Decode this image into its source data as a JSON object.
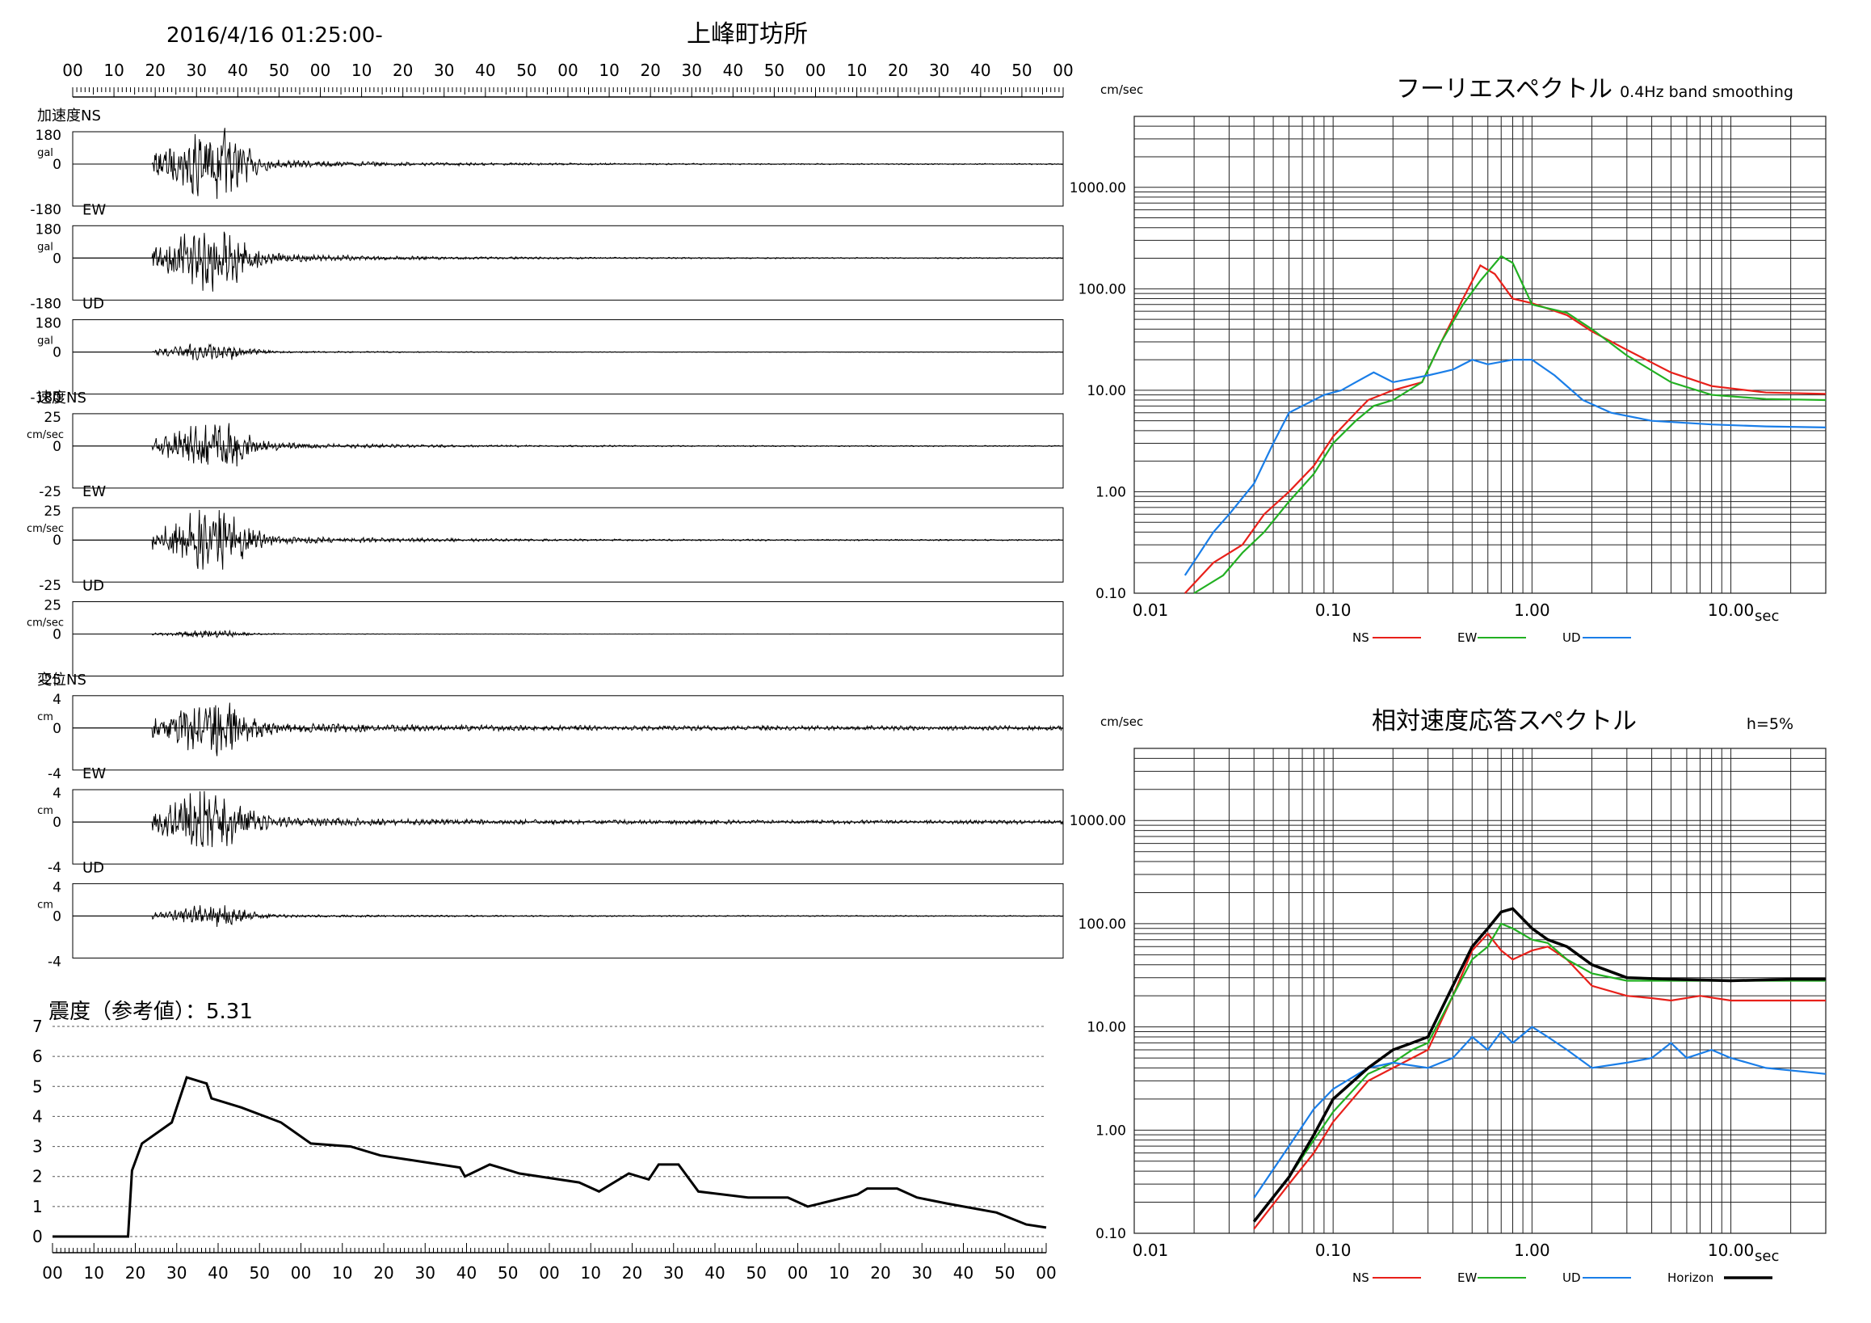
{
  "header": {
    "datetime": "2016/4/16 01:25:00-",
    "station": "上峰町坊所",
    "time_ticks": [
      "00",
      "10",
      "20",
      "30",
      "40",
      "50",
      "00",
      "10",
      "20",
      "30",
      "40",
      "50",
      "00",
      "10",
      "20",
      "30",
      "40",
      "50",
      "00",
      "10",
      "20",
      "30",
      "40",
      "50",
      "00"
    ]
  },
  "waveforms": [
    {
      "group": "加速度",
      "comp": "NS",
      "unit": "gal",
      "ymax": "180",
      "ymin": "-180",
      "amp": 1.0,
      "decay": 0.0,
      "tail": 0.015,
      "onset": 0.08
    },
    {
      "group": "",
      "comp": "EW",
      "unit": "gal",
      "ymax": "180",
      "ymin": "-180",
      "amp": 1.0,
      "decay": 0.0,
      "tail": 0.015,
      "onset": 0.08
    },
    {
      "group": "",
      "comp": "UD",
      "unit": "gal",
      "ymax": "180",
      "ymin": "-180",
      "amp": 0.25,
      "decay": 0.0,
      "tail": 0.02,
      "onset": 0.08
    },
    {
      "group": "速度",
      "comp": "NS",
      "unit": "cm/sec",
      "ymax": "25",
      "ymin": "-25",
      "amp": 0.75,
      "decay": 0.0,
      "tail": 0.02,
      "onset": 0.08
    },
    {
      "group": "",
      "comp": "EW",
      "unit": "cm/sec",
      "ymax": "25",
      "ymin": "-25",
      "amp": 0.95,
      "decay": 0.0,
      "tail": 0.02,
      "onset": 0.08
    },
    {
      "group": "",
      "comp": "UD",
      "unit": "cm/sec",
      "ymax": "25",
      "ymin": "-25",
      "amp": 0.1,
      "decay": 0.0,
      "tail": 0.01,
      "onset": 0.08
    },
    {
      "group": "変位",
      "comp": "NS",
      "unit": "cm",
      "ymax": "4",
      "ymin": "-4",
      "amp": 0.8,
      "decay": 0.0,
      "tail": 0.08,
      "onset": 0.08
    },
    {
      "group": "",
      "comp": "EW",
      "unit": "cm",
      "ymax": "4",
      "ymin": "-4",
      "amp": 0.9,
      "decay": 0.0,
      "tail": 0.06,
      "onset": 0.08
    },
    {
      "group": "",
      "comp": "UD",
      "unit": "cm",
      "ymax": "4",
      "ymin": "-4",
      "amp": 0.3,
      "decay": 0.0,
      "tail": 0.05,
      "onset": 0.08
    }
  ],
  "intensity": {
    "title": "震度（参考値）：5.31",
    "y_ticks": [
      "0",
      "1",
      "2",
      "3",
      "4",
      "5",
      "6",
      "7"
    ],
    "x_ticks": [
      "00",
      "10",
      "20",
      "30",
      "40",
      "50",
      "00",
      "10",
      "20",
      "30",
      "40",
      "50",
      "00",
      "10",
      "20",
      "30",
      "40",
      "50",
      "00",
      "10",
      "20",
      "30",
      "40",
      "50",
      "00"
    ]
  },
  "chart_data": [
    {
      "type": "line",
      "title": "フーリエスペクトル",
      "subtitle": "0.4Hz band smoothing",
      "ylabel": "cm/sec",
      "xlabel": "sec",
      "xscale": "log",
      "yscale": "log",
      "xlim": [
        0.01,
        30
      ],
      "ylim": [
        0.1,
        5000
      ],
      "x_ticks": [
        "0.01",
        "0.10",
        "1.00",
        "10.00"
      ],
      "y_ticks": [
        "0.10",
        "1.00",
        "10.00",
        "100.00",
        "1000.00"
      ],
      "legend": "bottom",
      "series": [
        {
          "name": "NS",
          "color": "#e8201a",
          "points": [
            [
              0.018,
              0.1
            ],
            [
              0.025,
              0.2
            ],
            [
              0.035,
              0.3
            ],
            [
              0.045,
              0.6
            ],
            [
              0.06,
              1.0
            ],
            [
              0.08,
              1.8
            ],
            [
              0.1,
              3.5
            ],
            [
              0.13,
              6
            ],
            [
              0.15,
              8
            ],
            [
              0.2,
              10
            ],
            [
              0.28,
              12
            ],
            [
              0.35,
              30
            ],
            [
              0.45,
              80
            ],
            [
              0.55,
              170
            ],
            [
              0.65,
              140
            ],
            [
              0.8,
              80
            ],
            [
              1.0,
              72
            ],
            [
              1.5,
              55
            ],
            [
              2.0,
              38
            ],
            [
              3.0,
              25
            ],
            [
              5.0,
              15
            ],
            [
              8.0,
              11
            ],
            [
              15,
              9.5
            ],
            [
              30,
              9.2
            ]
          ]
        },
        {
          "name": "EW",
          "color": "#22b022",
          "points": [
            [
              0.02,
              0.1
            ],
            [
              0.028,
              0.15
            ],
            [
              0.035,
              0.25
            ],
            [
              0.045,
              0.4
            ],
            [
              0.06,
              0.8
            ],
            [
              0.08,
              1.5
            ],
            [
              0.1,
              3
            ],
            [
              0.13,
              5
            ],
            [
              0.16,
              7
            ],
            [
              0.2,
              8
            ],
            [
              0.28,
              12
            ],
            [
              0.35,
              30
            ],
            [
              0.45,
              70
            ],
            [
              0.55,
              120
            ],
            [
              0.7,
              210
            ],
            [
              0.8,
              180
            ],
            [
              1.0,
              70
            ],
            [
              1.5,
              58
            ],
            [
              2.0,
              40
            ],
            [
              3.0,
              22
            ],
            [
              5.0,
              12
            ],
            [
              8.0,
              9
            ],
            [
              15,
              8.2
            ],
            [
              30,
              8
            ]
          ]
        },
        {
          "name": "UD",
          "color": "#1a7ee8",
          "points": [
            [
              0.018,
              0.15
            ],
            [
              0.025,
              0.4
            ],
            [
              0.03,
              0.6
            ],
            [
              0.04,
              1.2
            ],
            [
              0.05,
              3
            ],
            [
              0.06,
              6
            ],
            [
              0.07,
              7
            ],
            [
              0.09,
              9
            ],
            [
              0.11,
              10
            ],
            [
              0.13,
              12
            ],
            [
              0.16,
              15
            ],
            [
              0.2,
              12
            ],
            [
              0.3,
              14
            ],
            [
              0.4,
              16
            ],
            [
              0.5,
              20
            ],
            [
              0.6,
              18
            ],
            [
              0.8,
              20
            ],
            [
              1.0,
              20
            ],
            [
              1.3,
              14
            ],
            [
              1.8,
              8
            ],
            [
              2.5,
              6
            ],
            [
              4.0,
              5
            ],
            [
              8.0,
              4.6
            ],
            [
              15,
              4.4
            ],
            [
              30,
              4.3
            ]
          ]
        }
      ]
    },
    {
      "type": "line",
      "title": "相対速度応答スペクトル",
      "subtitle": "h=5%",
      "ylabel": "cm/sec",
      "xlabel": "sec",
      "xscale": "log",
      "yscale": "log",
      "xlim": [
        0.01,
        30
      ],
      "ylim": [
        0.1,
        5000
      ],
      "x_ticks": [
        "0.01",
        "0.10",
        "1.00",
        "10.00"
      ],
      "y_ticks": [
        "0.10",
        "1.00",
        "10.00",
        "100.00",
        "1000.00"
      ],
      "legend": "bottom",
      "series": [
        {
          "name": "NS",
          "color": "#e8201a",
          "points": [
            [
              0.04,
              0.11
            ],
            [
              0.06,
              0.3
            ],
            [
              0.08,
              0.6
            ],
            [
              0.1,
              1.2
            ],
            [
              0.15,
              3
            ],
            [
              0.2,
              4
            ],
            [
              0.25,
              5
            ],
            [
              0.3,
              6
            ],
            [
              0.4,
              20
            ],
            [
              0.5,
              55
            ],
            [
              0.6,
              80
            ],
            [
              0.7,
              55
            ],
            [
              0.8,
              45
            ],
            [
              1.0,
              55
            ],
            [
              1.2,
              60
            ],
            [
              1.5,
              45
            ],
            [
              2.0,
              25
            ],
            [
              3.0,
              20
            ],
            [
              4.0,
              19
            ],
            [
              5.0,
              18
            ],
            [
              7.0,
              20
            ],
            [
              10,
              18
            ],
            [
              20,
              18
            ],
            [
              30,
              18
            ]
          ]
        },
        {
          "name": "EW",
          "color": "#22b022",
          "points": [
            [
              0.04,
              0.13
            ],
            [
              0.06,
              0.35
            ],
            [
              0.08,
              0.8
            ],
            [
              0.1,
              1.5
            ],
            [
              0.15,
              3.5
            ],
            [
              0.2,
              4.5
            ],
            [
              0.25,
              6
            ],
            [
              0.3,
              7
            ],
            [
              0.4,
              20
            ],
            [
              0.5,
              45
            ],
            [
              0.6,
              60
            ],
            [
              0.7,
              100
            ],
            [
              0.8,
              90
            ],
            [
              1.0,
              70
            ],
            [
              1.2,
              65
            ],
            [
              1.5,
              45
            ],
            [
              2.0,
              33
            ],
            [
              3.0,
              28
            ],
            [
              5.0,
              28
            ],
            [
              10,
              28
            ],
            [
              20,
              28
            ],
            [
              30,
              28
            ]
          ]
        },
        {
          "name": "UD",
          "color": "#1a7ee8",
          "points": [
            [
              0.04,
              0.22
            ],
            [
              0.06,
              0.7
            ],
            [
              0.08,
              1.6
            ],
            [
              0.1,
              2.5
            ],
            [
              0.15,
              4
            ],
            [
              0.2,
              4.5
            ],
            [
              0.3,
              4
            ],
            [
              0.4,
              5
            ],
            [
              0.5,
              8
            ],
            [
              0.6,
              6
            ],
            [
              0.7,
              9
            ],
            [
              0.8,
              7
            ],
            [
              1.0,
              10
            ],
            [
              1.2,
              8
            ],
            [
              1.5,
              6
            ],
            [
              2.0,
              4
            ],
            [
              3.0,
              4.5
            ],
            [
              4.0,
              5
            ],
            [
              5.0,
              7
            ],
            [
              6.0,
              5
            ],
            [
              8.0,
              6
            ],
            [
              10,
              5
            ],
            [
              15,
              4
            ],
            [
              30,
              3.5
            ]
          ]
        },
        {
          "name": "Horizon",
          "color": "#000000",
          "points": [
            [
              0.04,
              0.13
            ],
            [
              0.06,
              0.35
            ],
            [
              0.08,
              0.9
            ],
            [
              0.1,
              2
            ],
            [
              0.15,
              4
            ],
            [
              0.2,
              6
            ],
            [
              0.25,
              7
            ],
            [
              0.3,
              8
            ],
            [
              0.4,
              25
            ],
            [
              0.5,
              60
            ],
            [
              0.6,
              90
            ],
            [
              0.7,
              130
            ],
            [
              0.8,
              140
            ],
            [
              1.0,
              90
            ],
            [
              1.2,
              70
            ],
            [
              1.5,
              60
            ],
            [
              2.0,
              40
            ],
            [
              3.0,
              30
            ],
            [
              5.0,
              29
            ],
            [
              10,
              28
            ],
            [
              20,
              29
            ],
            [
              30,
              29
            ]
          ]
        }
      ]
    }
  ]
}
